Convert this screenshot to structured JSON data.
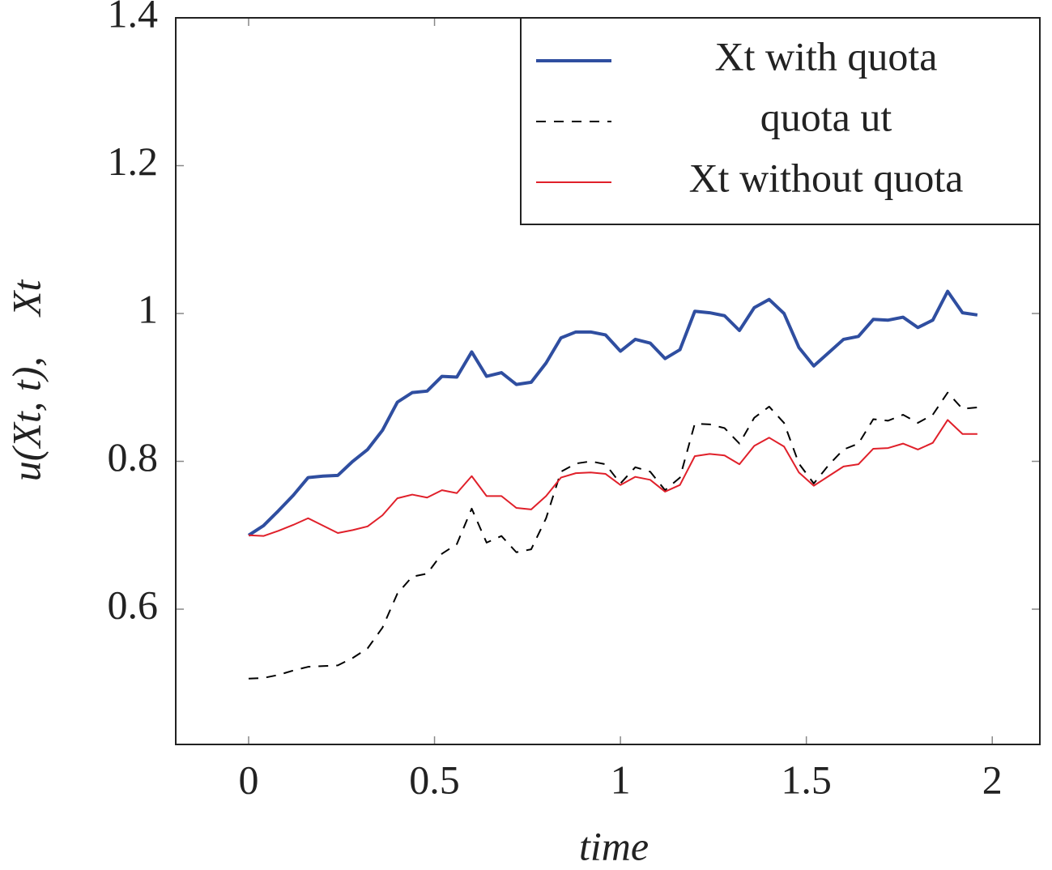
{
  "chart_data": {
    "type": "line",
    "xlabel": "time",
    "ylabel": "u(Xt, t),    Xt",
    "x": [
      0,
      0.04,
      0.08,
      0.12,
      0.16,
      0.2,
      0.24,
      0.28,
      0.32,
      0.36,
      0.4,
      0.44,
      0.48,
      0.52,
      0.56,
      0.6,
      0.64,
      0.68,
      0.72,
      0.76,
      0.8,
      0.84,
      0.88,
      0.92,
      0.96,
      1,
      1.04,
      1.08,
      1.12,
      1.16,
      1.2,
      1.24,
      1.28,
      1.32,
      1.36,
      1.4,
      1.44,
      1.48,
      1.52,
      1.56,
      1.6,
      1.64,
      1.68,
      1.72,
      1.76,
      1.8,
      1.84,
      1.88,
      1.92,
      1.96
    ],
    "series": [
      {
        "name": "Xt with quota",
        "color": "#2f4ea0",
        "style": "solid",
        "values": [
          0.7,
          0.713,
          0.733,
          0.754,
          0.778,
          0.78,
          0.781,
          0.8,
          0.816,
          0.842,
          0.88,
          0.893,
          0.895,
          0.915,
          0.914,
          0.948,
          0.915,
          0.92,
          0.904,
          0.907,
          0.933,
          0.967,
          0.975,
          0.975,
          0.971,
          0.949,
          0.965,
          0.96,
          0.939,
          0.951,
          1.003,
          1.001,
          0.997,
          0.977,
          1.008,
          1.019,
          1.0,
          0.954,
          0.929,
          0.947,
          0.965,
          0.969,
          0.992,
          0.991,
          0.995,
          0.981,
          0.991,
          1.03,
          1.001,
          0.998
        ]
      },
      {
        "name": "quota ut",
        "color": "#000000",
        "style": "dashed",
        "values": [
          0.506,
          0.507,
          0.511,
          0.517,
          0.522,
          0.523,
          0.524,
          0.534,
          0.547,
          0.575,
          0.621,
          0.644,
          0.648,
          0.675,
          0.688,
          0.736,
          0.69,
          0.699,
          0.677,
          0.681,
          0.723,
          0.786,
          0.797,
          0.8,
          0.796,
          0.77,
          0.792,
          0.786,
          0.761,
          0.778,
          0.851,
          0.85,
          0.845,
          0.824,
          0.859,
          0.874,
          0.852,
          0.797,
          0.77,
          0.795,
          0.816,
          0.824,
          0.857,
          0.855,
          0.863,
          0.852,
          0.863,
          0.893,
          0.871,
          0.873
        ]
      },
      {
        "name": "Xt without quota",
        "color": "#e0202a",
        "style": "thin",
        "values": [
          0.7,
          0.699,
          0.706,
          0.714,
          0.723,
          0.713,
          0.703,
          0.707,
          0.712,
          0.727,
          0.75,
          0.755,
          0.751,
          0.761,
          0.757,
          0.78,
          0.753,
          0.753,
          0.737,
          0.735,
          0.753,
          0.778,
          0.784,
          0.785,
          0.783,
          0.768,
          0.779,
          0.775,
          0.759,
          0.768,
          0.807,
          0.81,
          0.808,
          0.796,
          0.821,
          0.832,
          0.82,
          0.785,
          0.767,
          0.78,
          0.793,
          0.796,
          0.817,
          0.818,
          0.824,
          0.816,
          0.825,
          0.856,
          0.837,
          0.837
        ]
      }
    ],
    "xlim": [
      -0.196,
      2.128
    ],
    "ylim": [
      0.417,
      1.4
    ],
    "xticks": [
      0,
      0.5,
      1,
      1.5,
      2
    ],
    "yticks": [
      0.6,
      0.8,
      1,
      1.2,
      1.4
    ],
    "grid": false,
    "legend": "upper right"
  }
}
